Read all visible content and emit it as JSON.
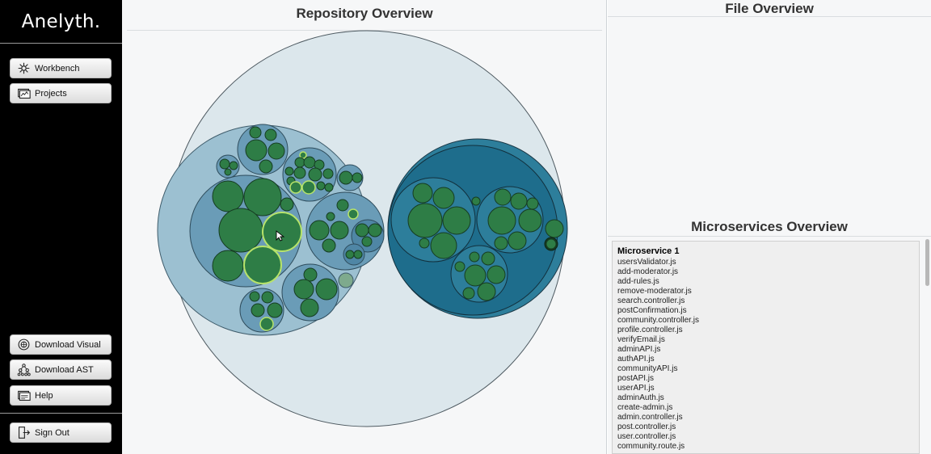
{
  "app": {
    "brand": "Anelyth."
  },
  "sidebar": {
    "nav": [
      {
        "label": "Workbench",
        "icon": "workbench-icon"
      },
      {
        "label": "Projects",
        "icon": "projects-icon"
      }
    ],
    "bottom": [
      {
        "label": "Download Visual",
        "icon": "download-visual-icon"
      },
      {
        "label": "Download AST",
        "icon": "download-ast-icon"
      },
      {
        "label": "Help",
        "icon": "help-icon"
      }
    ],
    "signout": {
      "label": "Sign Out",
      "icon": "sign-out-icon"
    }
  },
  "repository": {
    "title": "Repository Overview",
    "colors": {
      "outer": "#dce7ec",
      "group1": "#9cc0d1",
      "group1_inner": "#6a9cb7",
      "group2": "#2d7e9b",
      "group2_inner": "#1e6d8c",
      "leaf": "#2e7d46",
      "highlight": "#b7e36a"
    }
  },
  "file_overview": {
    "title": "File Overview"
  },
  "microservices": {
    "title": "Microservices Overview",
    "groups": [
      {
        "name": "Microservice 1",
        "files": [
          "usersValidator.js",
          "add-moderator.js",
          "add-rules.js",
          "remove-moderator.js",
          "search.controller.js",
          "postConfirmation.js",
          "community.controller.js",
          "profile.controller.js",
          "verifyEmail.js",
          "adminAPI.js",
          "authAPI.js",
          "communityAPI.js",
          "postAPI.js",
          "userAPI.js",
          "adminAuth.js",
          "create-admin.js",
          "admin.controller.js",
          "post.controller.js",
          "user.controller.js",
          "community.route.js"
        ]
      }
    ]
  }
}
